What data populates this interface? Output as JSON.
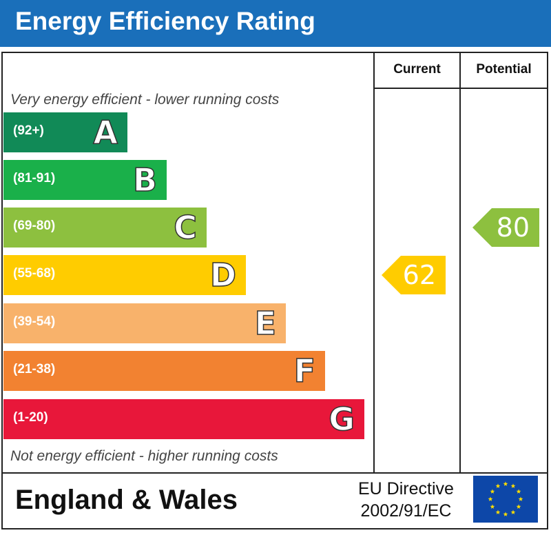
{
  "header": {
    "title": "Energy Efficiency Rating"
  },
  "columns": {
    "current": "Current",
    "potential": "Potential"
  },
  "notes": {
    "top": "Very energy efficient - lower running costs",
    "bottom": "Not energy efficient - higher running costs"
  },
  "footer": {
    "region": "England & Wales",
    "directive_line1": "EU Directive",
    "directive_line2": "2002/91/EC"
  },
  "colors": {
    "title_bar": "#1a6fba",
    "A": "#118a57",
    "B": "#1ab04a",
    "C": "#8dc03f",
    "D": "#ffcc00",
    "E": "#f8b26b",
    "F": "#f28231",
    "G": "#e8173a",
    "eu_flag": "#0d47a8",
    "eu_stars": "#ffde00"
  },
  "chart_data": {
    "type": "bar",
    "categories": [
      "A",
      "B",
      "C",
      "D",
      "E",
      "F",
      "G"
    ],
    "ranges": [
      "(92+)",
      "(81-91)",
      "(69-80)",
      "(55-68)",
      "(39-54)",
      "(21-38)",
      "(1-20)"
    ],
    "current": {
      "value": 62,
      "band": "D"
    },
    "potential": {
      "value": 80,
      "band": "C"
    }
  }
}
